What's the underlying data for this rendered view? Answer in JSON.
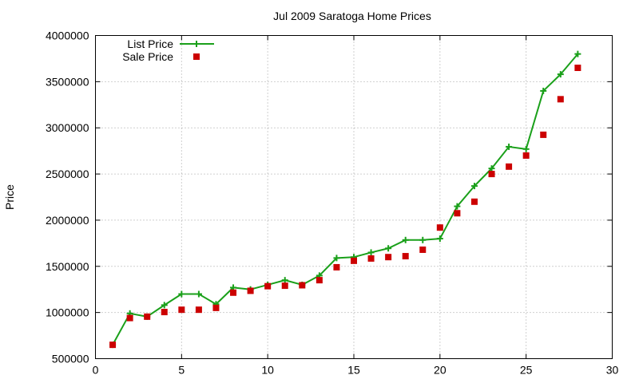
{
  "chart_data": {
    "type": "line",
    "title": "Jul 2009 Saratoga Home Prices",
    "xlabel": "",
    "ylabel": "Price",
    "xlim": [
      0,
      30
    ],
    "ylim": [
      500000,
      4000000
    ],
    "xticks": [
      0,
      5,
      10,
      15,
      20,
      25,
      30
    ],
    "yticks": [
      500000,
      1000000,
      1500000,
      2000000,
      2500000,
      3000000,
      3500000,
      4000000
    ],
    "grid": true,
    "legend_position": "top-left",
    "series": [
      {
        "name": "List Price",
        "style": "line-with-plus-markers",
        "color": "#1aa01a",
        "x": [
          1,
          2,
          3,
          4,
          5,
          6,
          7,
          8,
          9,
          10,
          11,
          12,
          13,
          14,
          15,
          16,
          17,
          18,
          19,
          20,
          21,
          22,
          23,
          24,
          25,
          26,
          27,
          28
        ],
        "y": [
          650000,
          990000,
          955000,
          1080000,
          1200000,
          1200000,
          1090000,
          1270000,
          1250000,
          1300000,
          1350000,
          1300000,
          1400000,
          1590000,
          1600000,
          1650000,
          1695000,
          1785000,
          1785000,
          1800000,
          2150000,
          2370000,
          2560000,
          2795000,
          2770000,
          3400000,
          3580000,
          3800000
        ]
      },
      {
        "name": "Sale Price",
        "style": "square-markers",
        "color": "#cc0000",
        "x": [
          1,
          2,
          3,
          4,
          5,
          6,
          7,
          8,
          9,
          10,
          11,
          12,
          13,
          14,
          15,
          16,
          17,
          18,
          19,
          20,
          21,
          22,
          23,
          24,
          25,
          26,
          27,
          28
        ],
        "y": [
          650000,
          940000,
          955000,
          1005000,
          1030000,
          1030000,
          1050000,
          1215000,
          1235000,
          1285000,
          1290000,
          1295000,
          1350000,
          1490000,
          1560000,
          1585000,
          1600000,
          1610000,
          1680000,
          1920000,
          2075000,
          2200000,
          2500000,
          2580000,
          2700000,
          2925000,
          3310000,
          3650000
        ]
      }
    ]
  }
}
